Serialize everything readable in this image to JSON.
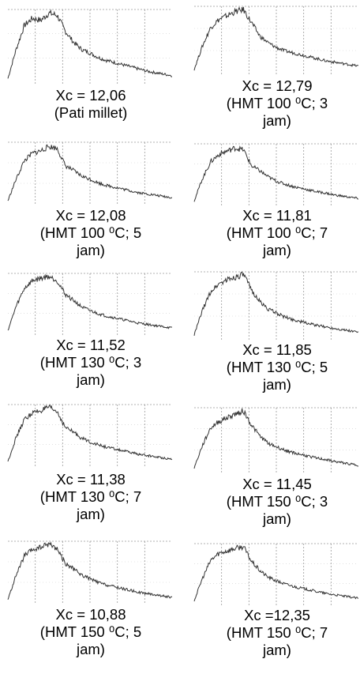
{
  "figure": {
    "panels": [
      {
        "xc_text": "Xc = 12,06",
        "sample": "(Pati millet)",
        "sample_cont": ""
      },
      {
        "xc_text": "Xc = 12,79",
        "sample": "(HMT 100 ⁰C; 3",
        "sample_cont": "jam)"
      },
      {
        "xc_text": "Xc = 12,08",
        "sample": "(HMT 100 ⁰C; 5",
        "sample_cont": "jam)"
      },
      {
        "xc_text": "Xc = 11,81",
        "sample": "(HMT 100 ⁰C; 7",
        "sample_cont": "jam)"
      },
      {
        "xc_text": "Xc = 11,52",
        "sample": "(HMT 130 ⁰C; 3",
        "sample_cont": "jam)"
      },
      {
        "xc_text": "Xc = 11,85",
        "sample": "(HMT 130 ⁰C; 5",
        "sample_cont": "jam)"
      },
      {
        "xc_text": "Xc = 11,38",
        "sample": "(HMT 130 ⁰C; 7",
        "sample_cont": "jam)"
      },
      {
        "xc_text": "Xc = 11,45",
        "sample": "(HMT 150 ⁰C; 3",
        "sample_cont": "jam)"
      },
      {
        "xc_text": "Xc = 10,88",
        "sample": "(HMT 150 ⁰C; 5",
        "sample_cont": "jam)"
      },
      {
        "xc_text": "Xc =12,35",
        "sample": "(HMT 150 ⁰C; 7",
        "sample_cont": "jam)"
      }
    ]
  },
  "chart_data": [
    {
      "type": "line",
      "title": "Xc = 12,06 (Pati millet)",
      "grid": true,
      "line_color": "#333333",
      "grid_color": "#999999",
      "x": [
        0,
        0.05,
        0.1,
        0.15,
        0.2,
        0.25,
        0.3,
        0.35,
        0.4,
        0.45,
        0.5,
        0.55,
        0.6,
        0.65,
        0.7,
        0.75,
        0.8,
        0.85,
        0.9,
        0.95,
        1.0
      ],
      "y": [
        0.05,
        0.45,
        0.78,
        0.88,
        0.85,
        0.95,
        0.92,
        0.7,
        0.55,
        0.45,
        0.4,
        0.34,
        0.3,
        0.27,
        0.24,
        0.21,
        0.18,
        0.15,
        0.13,
        0.11,
        0.09
      ]
    },
    {
      "type": "line",
      "title": "Xc = 12,79 (HMT 100 ⁰C; 3 jam)",
      "grid": true,
      "line_color": "#333333",
      "grid_color": "#999999",
      "x": [
        0,
        0.05,
        0.1,
        0.15,
        0.2,
        0.25,
        0.3,
        0.35,
        0.4,
        0.45,
        0.5,
        0.55,
        0.6,
        0.65,
        0.7,
        0.75,
        0.8,
        0.85,
        0.9,
        0.95,
        1.0
      ],
      "y": [
        0.05,
        0.4,
        0.68,
        0.8,
        0.86,
        0.92,
        0.95,
        0.75,
        0.55,
        0.45,
        0.38,
        0.33,
        0.3,
        0.27,
        0.24,
        0.21,
        0.18,
        0.16,
        0.14,
        0.12,
        0.1
      ]
    },
    {
      "type": "line",
      "title": "Xc = 12,08 (HMT 100 ⁰C; 5 jam)",
      "grid": true,
      "line_color": "#333333",
      "grid_color": "#999999",
      "x": [
        0,
        0.05,
        0.1,
        0.15,
        0.2,
        0.25,
        0.3,
        0.35,
        0.4,
        0.45,
        0.5,
        0.55,
        0.6,
        0.65,
        0.7,
        0.75,
        0.8,
        0.85,
        0.9,
        0.95,
        1.0
      ],
      "y": [
        0.05,
        0.4,
        0.7,
        0.82,
        0.86,
        0.93,
        0.9,
        0.62,
        0.54,
        0.45,
        0.4,
        0.34,
        0.3,
        0.27,
        0.24,
        0.21,
        0.18,
        0.16,
        0.14,
        0.12,
        0.1
      ]
    },
    {
      "type": "line",
      "title": "Xc = 11,81 (HMT 100 ⁰C; 7 jam)",
      "grid": true,
      "line_color": "#333333",
      "grid_color": "#999999",
      "x": [
        0,
        0.05,
        0.1,
        0.15,
        0.2,
        0.25,
        0.3,
        0.35,
        0.4,
        0.45,
        0.5,
        0.55,
        0.6,
        0.65,
        0.7,
        0.75,
        0.8,
        0.85,
        0.9,
        0.95,
        1.0
      ],
      "y": [
        0.05,
        0.42,
        0.7,
        0.82,
        0.88,
        0.93,
        0.9,
        0.63,
        0.55,
        0.45,
        0.38,
        0.33,
        0.29,
        0.26,
        0.23,
        0.2,
        0.18,
        0.15,
        0.13,
        0.11,
        0.09
      ]
    },
    {
      "type": "line",
      "title": "Xc = 11,52 (HMT 130 ⁰C; 3 jam)",
      "grid": true,
      "line_color": "#333333",
      "grid_color": "#999999",
      "x": [
        0,
        0.05,
        0.1,
        0.15,
        0.2,
        0.25,
        0.3,
        0.35,
        0.4,
        0.45,
        0.5,
        0.55,
        0.6,
        0.65,
        0.7,
        0.75,
        0.8,
        0.85,
        0.9,
        0.95,
        1.0
      ],
      "y": [
        0.05,
        0.45,
        0.75,
        0.88,
        0.92,
        0.95,
        0.88,
        0.65,
        0.55,
        0.44,
        0.38,
        0.33,
        0.29,
        0.26,
        0.23,
        0.2,
        0.17,
        0.15,
        0.13,
        0.11,
        0.09
      ]
    },
    {
      "type": "line",
      "title": "Xc = 11,85 (HMT 130 ⁰C; 5 jam)",
      "grid": true,
      "line_color": "#333333",
      "grid_color": "#999999",
      "x": [
        0,
        0.05,
        0.1,
        0.15,
        0.2,
        0.25,
        0.3,
        0.35,
        0.4,
        0.45,
        0.5,
        0.55,
        0.6,
        0.65,
        0.7,
        0.75,
        0.8,
        0.85,
        0.9,
        0.95,
        1.0
      ],
      "y": [
        0.05,
        0.42,
        0.7,
        0.82,
        0.88,
        0.92,
        0.96,
        0.72,
        0.55,
        0.44,
        0.38,
        0.32,
        0.28,
        0.25,
        0.22,
        0.19,
        0.17,
        0.15,
        0.13,
        0.11,
        0.09
      ]
    },
    {
      "type": "line",
      "title": "Xc = 11,38 (HMT 130 ⁰C; 7 jam)",
      "grid": true,
      "line_color": "#333333",
      "grid_color": "#999999",
      "x": [
        0,
        0.05,
        0.1,
        0.15,
        0.2,
        0.25,
        0.3,
        0.35,
        0.4,
        0.45,
        0.5,
        0.55,
        0.6,
        0.65,
        0.7,
        0.75,
        0.8,
        0.85,
        0.9,
        0.95,
        1.0
      ],
      "y": [
        0.05,
        0.45,
        0.75,
        0.86,
        0.9,
        0.95,
        0.88,
        0.62,
        0.54,
        0.44,
        0.38,
        0.33,
        0.29,
        0.26,
        0.23,
        0.2,
        0.17,
        0.15,
        0.13,
        0.11,
        0.09
      ]
    },
    {
      "type": "line",
      "title": "Xc = 11,45 (HMT 150 ⁰C; 3 jam)",
      "grid": true,
      "line_color": "#333333",
      "grid_color": "#999999",
      "x": [
        0,
        0.05,
        0.1,
        0.15,
        0.2,
        0.25,
        0.3,
        0.35,
        0.4,
        0.45,
        0.5,
        0.55,
        0.6,
        0.65,
        0.7,
        0.75,
        0.8,
        0.85,
        0.9,
        0.95,
        1.0
      ],
      "y": [
        0.05,
        0.4,
        0.68,
        0.78,
        0.84,
        0.9,
        0.95,
        0.72,
        0.55,
        0.44,
        0.38,
        0.33,
        0.29,
        0.26,
        0.23,
        0.2,
        0.18,
        0.15,
        0.13,
        0.11,
        0.09
      ]
    },
    {
      "type": "line",
      "title": "Xc = 10,88 (HMT 150 ⁰C; 5 jam)",
      "grid": true,
      "line_color": "#333333",
      "grid_color": "#999999",
      "x": [
        0,
        0.05,
        0.1,
        0.15,
        0.2,
        0.25,
        0.3,
        0.35,
        0.4,
        0.45,
        0.5,
        0.55,
        0.6,
        0.65,
        0.7,
        0.75,
        0.8,
        0.85,
        0.9,
        0.95,
        1.0
      ],
      "y": [
        0.05,
        0.45,
        0.76,
        0.86,
        0.9,
        0.96,
        0.88,
        0.64,
        0.55,
        0.45,
        0.39,
        0.33,
        0.29,
        0.26,
        0.23,
        0.2,
        0.17,
        0.15,
        0.13,
        0.11,
        0.09
      ]
    },
    {
      "type": "line",
      "title": "Xc =12,35 (HMT 150 ⁰C; 7 jam)",
      "grid": true,
      "line_color": "#333333",
      "grid_color": "#999999",
      "x": [
        0,
        0.05,
        0.1,
        0.15,
        0.2,
        0.25,
        0.3,
        0.35,
        0.4,
        0.45,
        0.5,
        0.55,
        0.6,
        0.65,
        0.7,
        0.75,
        0.8,
        0.85,
        0.9,
        0.95,
        1.0
      ],
      "y": [
        0.05,
        0.42,
        0.72,
        0.84,
        0.88,
        0.92,
        0.95,
        0.7,
        0.55,
        0.44,
        0.38,
        0.33,
        0.29,
        0.26,
        0.23,
        0.2,
        0.17,
        0.15,
        0.13,
        0.11,
        0.09
      ]
    }
  ]
}
